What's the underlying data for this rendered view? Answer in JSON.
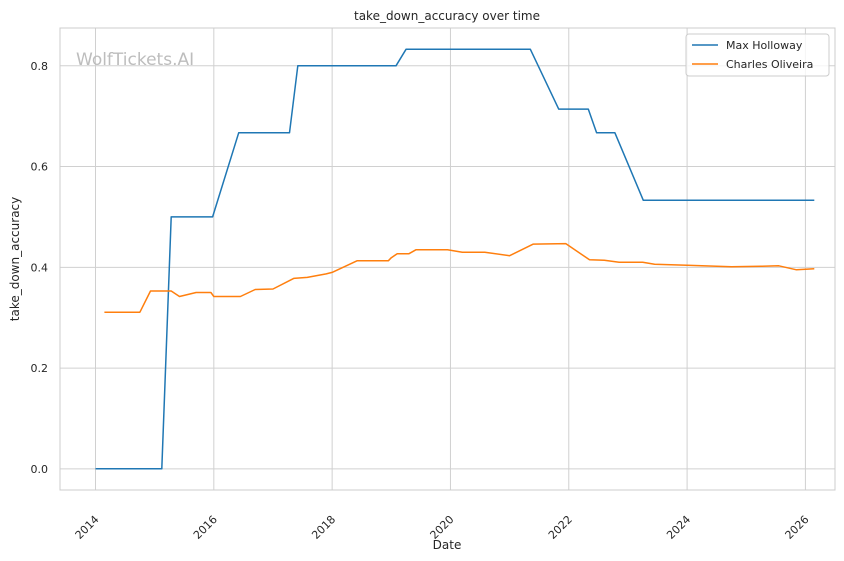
{
  "chart_data": {
    "type": "line",
    "title": "take_down_accuracy over time",
    "xlabel": "Date",
    "ylabel": "take_down_accuracy",
    "watermark": "WolfTickets.AI",
    "xlim": [
      2013.4,
      2026.5
    ],
    "ylim": [
      -0.042,
      0.875
    ],
    "x_ticks": [
      2014,
      2016,
      2018,
      2020,
      2022,
      2024,
      2026
    ],
    "y_ticks": [
      0.0,
      0.2,
      0.4,
      0.6,
      0.8
    ],
    "y_tick_labels": [
      "0.0",
      "0.2",
      "0.4",
      "0.6",
      "0.8"
    ],
    "grid": true,
    "legend_position": "top-right",
    "series": [
      {
        "name": "Max Holloway",
        "color": "#1f77b4",
        "points": [
          [
            2014.0,
            0.0
          ],
          [
            2015.12,
            0.0
          ],
          [
            2015.28,
            0.5
          ],
          [
            2015.98,
            0.5
          ],
          [
            2016.42,
            0.667
          ],
          [
            2017.28,
            0.667
          ],
          [
            2017.42,
            0.8
          ],
          [
            2019.08,
            0.8
          ],
          [
            2019.25,
            0.833
          ],
          [
            2021.35,
            0.833
          ],
          [
            2021.83,
            0.714
          ],
          [
            2022.33,
            0.714
          ],
          [
            2022.47,
            0.667
          ],
          [
            2022.78,
            0.667
          ],
          [
            2023.26,
            0.533
          ],
          [
            2026.15,
            0.533
          ]
        ]
      },
      {
        "name": "Charles Oliveira",
        "color": "#ff7f0e",
        "points": [
          [
            2014.15,
            0.311
          ],
          [
            2014.75,
            0.311
          ],
          [
            2014.93,
            0.353
          ],
          [
            2015.28,
            0.353
          ],
          [
            2015.42,
            0.342
          ],
          [
            2015.7,
            0.35
          ],
          [
            2015.95,
            0.35
          ],
          [
            2016.0,
            0.342
          ],
          [
            2016.45,
            0.342
          ],
          [
            2016.7,
            0.356
          ],
          [
            2017.0,
            0.357
          ],
          [
            2017.35,
            0.378
          ],
          [
            2017.58,
            0.38
          ],
          [
            2017.9,
            0.387
          ],
          [
            2018.0,
            0.39
          ],
          [
            2018.42,
            0.413
          ],
          [
            2018.95,
            0.413
          ],
          [
            2019.0,
            0.419
          ],
          [
            2019.1,
            0.427
          ],
          [
            2019.3,
            0.427
          ],
          [
            2019.42,
            0.435
          ],
          [
            2019.95,
            0.435
          ],
          [
            2020.2,
            0.43
          ],
          [
            2020.58,
            0.43
          ],
          [
            2021.0,
            0.423
          ],
          [
            2021.4,
            0.446
          ],
          [
            2021.95,
            0.447
          ],
          [
            2022.35,
            0.415
          ],
          [
            2022.6,
            0.414
          ],
          [
            2022.85,
            0.41
          ],
          [
            2023.25,
            0.41
          ],
          [
            2023.45,
            0.406
          ],
          [
            2024.0,
            0.404
          ],
          [
            2024.75,
            0.401
          ],
          [
            2025.25,
            0.402
          ],
          [
            2025.55,
            0.403
          ],
          [
            2025.85,
            0.395
          ],
          [
            2026.15,
            0.397
          ]
        ]
      }
    ]
  }
}
